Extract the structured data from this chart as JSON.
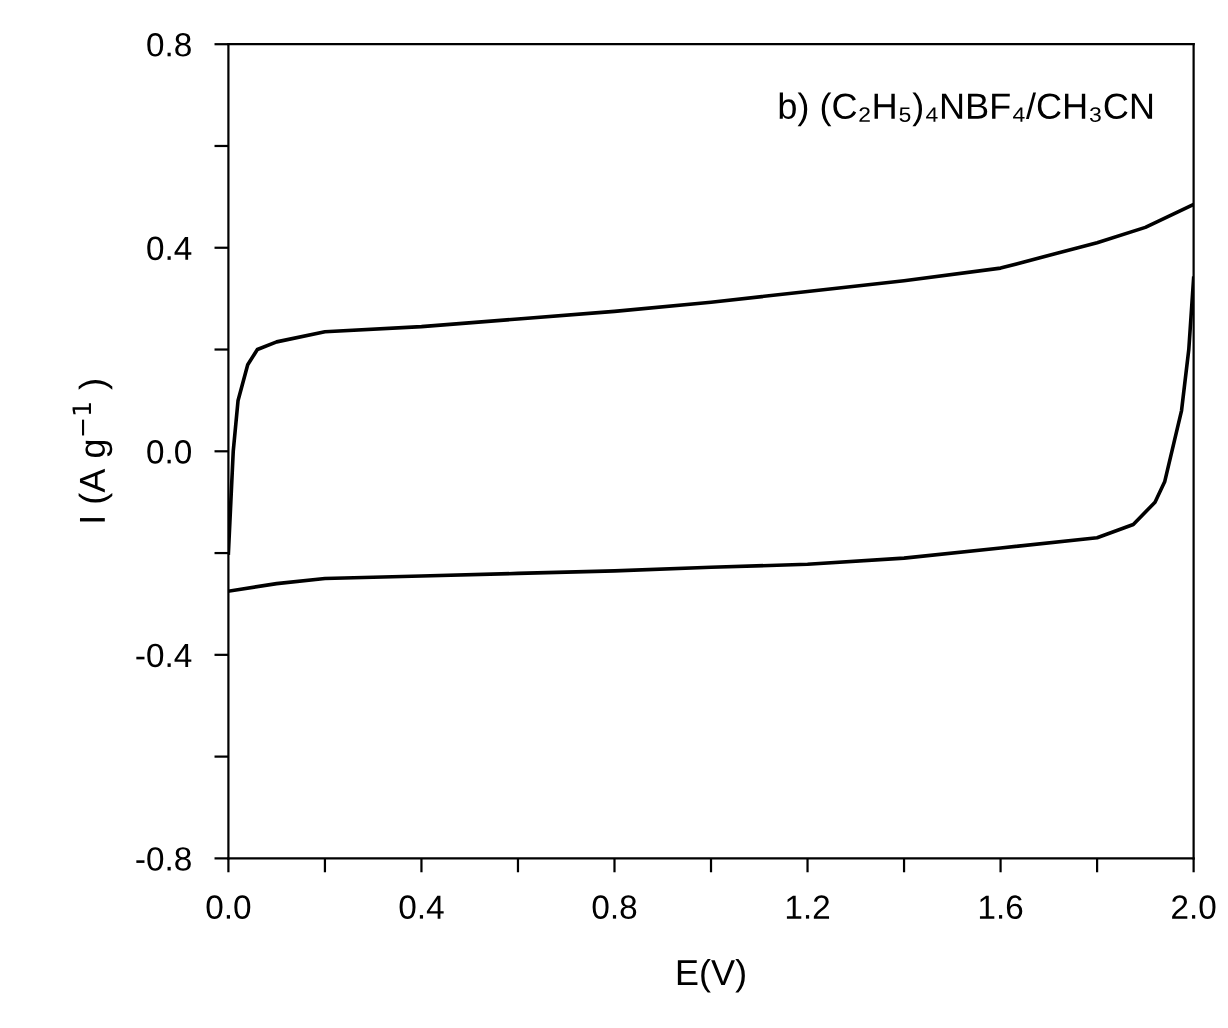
{
  "chart_data": {
    "type": "line",
    "xlabel": "E(V)",
    "ylabel": "I (A g$^{−1}$ )",
    "annotations": [
      "b) (C₂H₅)₄NBF₄/CH₃CN"
    ],
    "series": [
      {
        "color": "#000000",
        "x": [
          0.0,
          0.005,
          0.01,
          0.02,
          0.04,
          0.06,
          0.1,
          0.2,
          0.4,
          0.6,
          0.8,
          1.0,
          1.2,
          1.4,
          1.6,
          1.8,
          1.9,
          2.0
        ],
        "values": [
          -0.2,
          -0.1,
          0.0,
          0.1,
          0.17,
          0.2,
          0.215,
          0.235,
          0.245,
          0.26,
          0.275,
          0.293,
          0.314,
          0.335,
          0.36,
          0.41,
          0.44,
          0.485
        ]
      },
      {
        "color": "#000000",
        "x": [
          0.0,
          0.1,
          0.2,
          0.4,
          0.6,
          0.8,
          1.0,
          1.2,
          1.4,
          1.6,
          1.8,
          1.875,
          1.92,
          1.94,
          1.96,
          1.975,
          1.99,
          2.0
        ],
        "values": [
          -0.275,
          -0.26,
          -0.25,
          -0.245,
          -0.24,
          -0.235,
          -0.228,
          -0.222,
          -0.21,
          -0.19,
          -0.17,
          -0.144,
          -0.1,
          -0.06,
          0.02,
          0.08,
          0.2,
          0.34
        ]
      }
    ],
    "xlim": [
      0.0,
      2.0
    ],
    "ylim": [
      -0.8,
      0.8
    ],
    "xticks": [
      {
        "value": 0,
        "label": "0.0"
      },
      {
        "value": 0.2,
        "label": null
      },
      0.4,
      {
        "value": 0.6,
        "label": null
      },
      0.8,
      {
        "value": 1.0,
        "label": null
      },
      1.2,
      {
        "value": 1.4,
        "label": null
      },
      1.6,
      {
        "value": 1.8,
        "label": null
      },
      {
        "value": 2,
        "label": "2.0"
      }
    ],
    "yticks": [
      -0.8,
      {
        "value": -0.6,
        "label": null
      },
      -0.4,
      {
        "value": -0.2,
        "label": null
      },
      {
        "value": 0,
        "label": "0.0"
      },
      {
        "value": 0.2,
        "label": null
      },
      0.4,
      {
        "value": 0.6,
        "label": null
      },
      0.8
    ],
    "grid": false,
    "legend": false,
    "marker": "none",
    "line_style": "solid"
  }
}
